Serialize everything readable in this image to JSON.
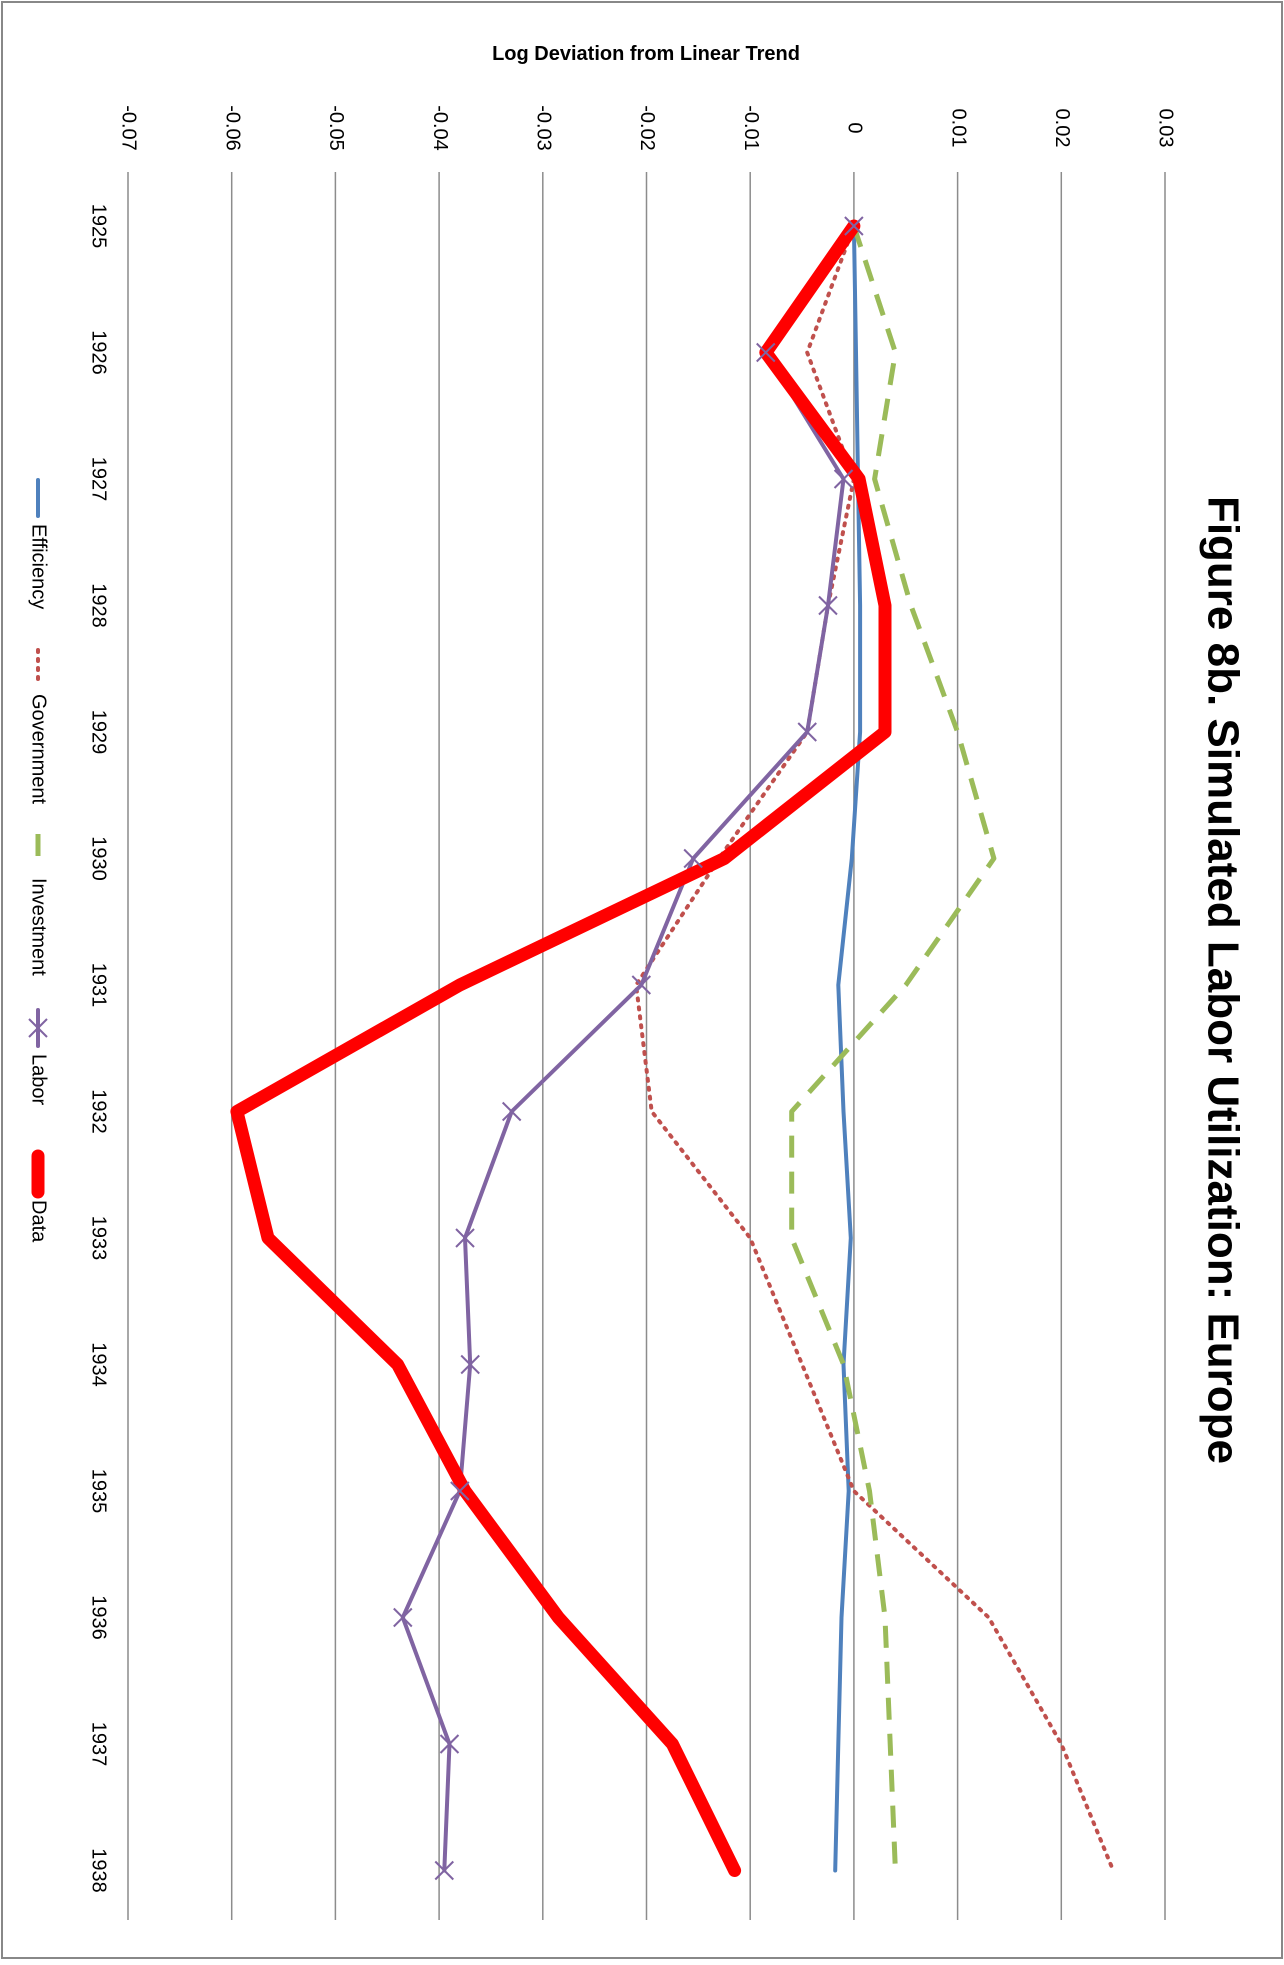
{
  "chart_data": {
    "type": "line",
    "title": "Figure 8b. Simulated Labor Utilization: Europe",
    "ylabel": "Log Deviation from Linear Trend",
    "xlabel": "",
    "categories": [
      "1925",
      "1926",
      "1927",
      "1928",
      "1929",
      "1930",
      "1931",
      "1932",
      "1933",
      "1934",
      "1935",
      "1936",
      "1937",
      "1938"
    ],
    "yticks": [
      "0.03",
      "0.02",
      "0.01",
      "0",
      "-0.01",
      "-0.02",
      "-0.03",
      "-0.04",
      "-0.05",
      "-0.06",
      "-0.07"
    ],
    "ylim": [
      -0.07,
      0.03
    ],
    "grid": true,
    "legend_position": "bottom",
    "orientation": "rotated-90-clockwise",
    "series": [
      {
        "name": "Efficiency",
        "color": "#4f81bd",
        "style": "solid",
        "values": [
          0.0,
          0.0002,
          0.0004,
          0.0006,
          0.0006,
          -0.0002,
          -0.0015,
          -0.001,
          -0.0003,
          -0.001,
          -0.0005,
          -0.0012,
          -0.0015,
          -0.0018
        ]
      },
      {
        "name": "Government",
        "color": "#c0504d",
        "style": "dotted",
        "values": [
          0.0,
          -0.0045,
          0.0,
          -0.0025,
          -0.0045,
          -0.013,
          -0.021,
          -0.0195,
          -0.01,
          -0.005,
          0.0,
          0.013,
          0.02,
          0.025
        ]
      },
      {
        "name": "Investment",
        "color": "#9bbb59",
        "style": "dashed",
        "values": [
          0.0,
          0.004,
          0.002,
          0.0055,
          0.01,
          0.0135,
          0.005,
          -0.006,
          -0.006,
          -0.001,
          0.0015,
          0.003,
          0.0035,
          0.004
        ]
      },
      {
        "name": "Labor",
        "color": "#8064a2",
        "style": "solid-marker",
        "values": [
          0.0,
          -0.0085,
          -0.001,
          -0.0025,
          -0.0045,
          -0.0155,
          -0.0205,
          -0.033,
          -0.0375,
          -0.037,
          -0.038,
          -0.0435,
          -0.039,
          -0.0395
        ]
      },
      {
        "name": "Data",
        "color": "#ff0000",
        "style": "thick",
        "values": [
          0.0,
          -0.0085,
          0.0005,
          0.003,
          0.003,
          -0.0125,
          -0.038,
          -0.0595,
          -0.0565,
          -0.044,
          -0.0375,
          -0.0285,
          -0.0175,
          -0.0115
        ]
      }
    ]
  }
}
